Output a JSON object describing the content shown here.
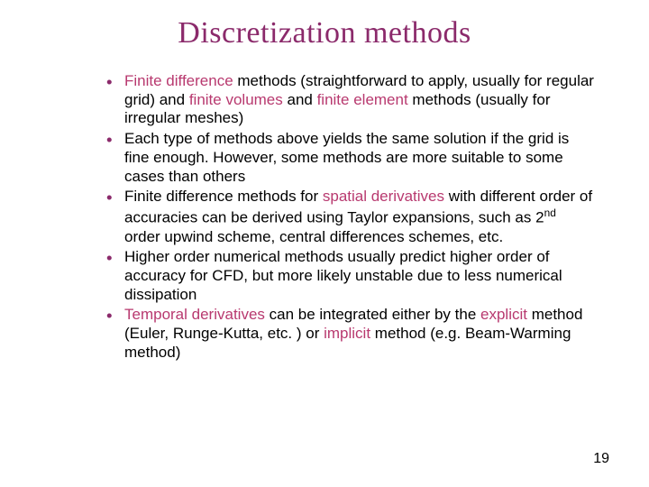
{
  "title": {
    "text": "Discretization methods",
    "fontsize": 34,
    "color": "#8b2a6b"
  },
  "body_fontsize": 17,
  "bullet_color": "#8b2a6b",
  "highlight_color": "#b8396f",
  "text_color": "#000000",
  "background_color": "#ffffff",
  "bullets": [
    {
      "runs": [
        {
          "t": "Finite difference",
          "hl": true
        },
        {
          "t": " methods (straightforward to apply, usually for regular grid) and "
        },
        {
          "t": "finite volumes",
          "hl": true
        },
        {
          "t": " and "
        },
        {
          "t": "finite element",
          "hl": true
        },
        {
          "t": " methods (usually for irregular meshes)"
        }
      ]
    },
    {
      "runs": [
        {
          "t": "Each type of methods above yields the same solution if the grid is fine enough. However, some methods are more suitable to some cases than others"
        }
      ]
    },
    {
      "runs": [
        {
          "t": "Finite difference methods for "
        },
        {
          "t": "spatial derivatives",
          "hl": true
        },
        {
          "t": " with different order of accuracies can be derived using Taylor expansions, such as 2"
        },
        {
          "t": "nd",
          "sup": true
        },
        {
          "t": " order upwind scheme, central differences schemes, etc."
        }
      ]
    },
    {
      "runs": [
        {
          "t": "Higher order numerical methods usually predict higher order of accuracy for CFD, but more likely unstable due to less numerical dissipation"
        }
      ]
    },
    {
      "runs": [
        {
          "t": "Temporal derivatives",
          "hl": true
        },
        {
          "t": " can be integrated either by the "
        },
        {
          "t": "explicit",
          "hl": true
        },
        {
          "t": " method (Euler, Runge-Kutta, etc. ) or "
        },
        {
          "t": "implicit",
          "hl": true
        },
        {
          "t": " method (e.g. Beam-Warming method)"
        }
      ]
    }
  ],
  "page_number": "19",
  "page_number_fontsize": 16
}
